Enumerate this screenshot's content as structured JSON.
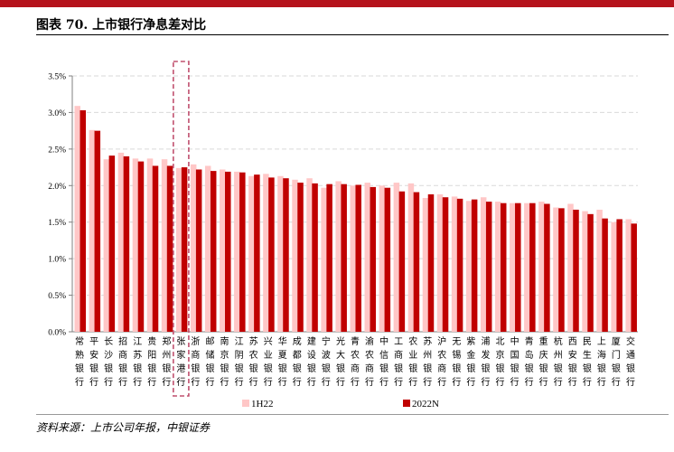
{
  "title": "图表 70. 上市银行净息差对比",
  "source": "资料来源：上市公司年报，中银证券",
  "colors": {
    "series_1H22": "#ffc7c7",
    "series_2022N": "#c00000",
    "highlight": "#c0506e",
    "brand": "#b5121b"
  },
  "chart_data": {
    "type": "bar",
    "title": "",
    "xlabel": "",
    "ylabel": "",
    "ylim": [
      0,
      3.5
    ],
    "yticks": [
      "0.0%",
      "0.5%",
      "1.0%",
      "1.5%",
      "2.0%",
      "2.5%",
      "3.0%",
      "3.5%"
    ],
    "grid": true,
    "legend_position": "bottom",
    "highlighted_category": "张家港银行",
    "categories": [
      "常熟银行",
      "平安银行",
      "长沙银行",
      "招商银行",
      "江苏银行",
      "贵阳银行",
      "郑州银行",
      "张家港行",
      "浙商银行",
      "邮储银行",
      "南京银行",
      "江阴银行",
      "苏农银行",
      "兴业银行",
      "华夏银行",
      "成都银行",
      "建设银行",
      "宁波银行",
      "光大银行",
      "青农商行",
      "渝农商行",
      "中信银行",
      "工商银行",
      "农业银行",
      "苏州银行",
      "沪农商行",
      "无锡银行",
      "紫金银行",
      "浦发银行",
      "北京银行",
      "中国银行",
      "青岛银行",
      "重庆银行",
      "杭州银行",
      "西安银行",
      "民生银行",
      "上海银行",
      "厦门银行",
      "交通银行"
    ],
    "series": [
      {
        "name": "1H22",
        "values": [
          3.09,
          2.76,
          2.36,
          2.45,
          2.37,
          2.37,
          2.36,
          2.24,
          2.29,
          2.27,
          2.22,
          2.19,
          2.13,
          2.16,
          2.13,
          2.08,
          2.1,
          1.97,
          2.06,
          2.0,
          2.04,
          2.0,
          2.04,
          2.03,
          1.83,
          1.88,
          1.85,
          1.79,
          1.84,
          1.78,
          1.76,
          1.76,
          1.78,
          1.7,
          1.75,
          1.65,
          1.67,
          1.5,
          1.54
        ]
      },
      {
        "name": "2022N",
        "values": [
          3.03,
          2.75,
          2.41,
          2.4,
          2.33,
          2.27,
          2.27,
          2.25,
          2.22,
          2.2,
          2.19,
          2.18,
          2.15,
          2.11,
          2.1,
          2.04,
          2.03,
          2.02,
          2.02,
          2.01,
          1.98,
          1.97,
          1.92,
          1.91,
          1.88,
          1.84,
          1.82,
          1.81,
          1.78,
          1.76,
          1.76,
          1.76,
          1.75,
          1.69,
          1.67,
          1.61,
          1.55,
          1.54,
          1.48
        ]
      }
    ]
  }
}
